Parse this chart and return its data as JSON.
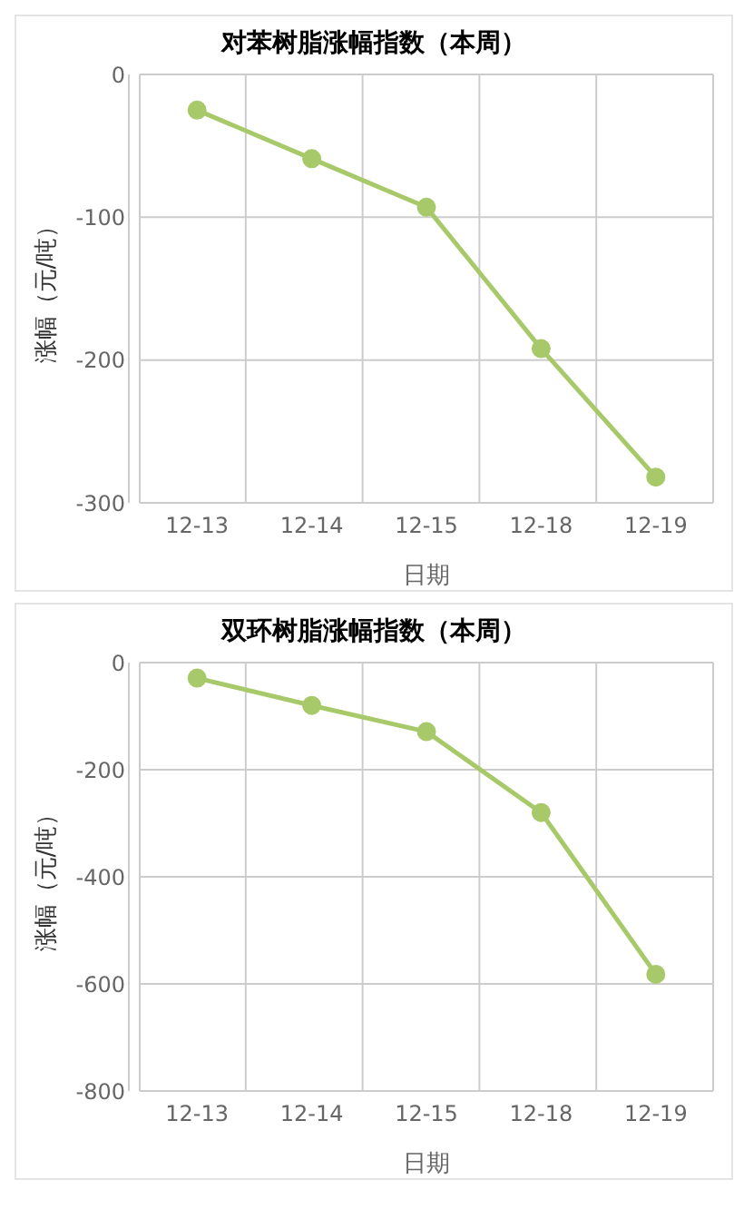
{
  "chart_data": [
    {
      "type": "line",
      "title": "对苯树脂涨幅指数（本周）",
      "xlabel": "日期",
      "ylabel": "涨幅（元/吨）",
      "categories": [
        "12-13",
        "12-14",
        "12-15",
        "12-18",
        "12-19"
      ],
      "series": [
        {
          "color": "#a8c96a",
          "values": [
            -25,
            -59,
            -93,
            -192,
            -282
          ]
        }
      ],
      "ylim": [
        -300,
        0
      ],
      "yticks": [
        -300,
        -200,
        -100,
        0
      ],
      "grid": true,
      "marker": "circle",
      "legend": false
    },
    {
      "type": "line",
      "title": "双环树脂涨幅指数（本周）",
      "xlabel": "日期",
      "ylabel": "涨幅（元/吨）",
      "categories": [
        "12-13",
        "12-14",
        "12-15",
        "12-18",
        "12-19"
      ],
      "series": [
        {
          "color": "#a8c96a",
          "values": [
            -29,
            -80,
            -129,
            -280,
            -582
          ]
        }
      ],
      "ylim": [
        -800,
        0
      ],
      "yticks": [
        -800,
        -600,
        -400,
        -200,
        0
      ],
      "grid": true,
      "marker": "circle",
      "legend": false
    }
  ]
}
